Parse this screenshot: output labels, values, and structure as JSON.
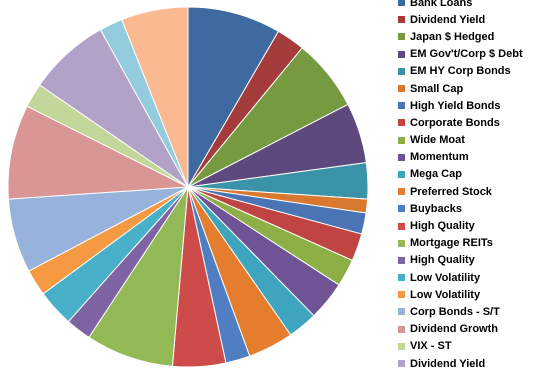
{
  "chart_data": {
    "type": "pie",
    "title": "",
    "legend_position": "right",
    "slices": [
      {
        "label": "Bank Loans",
        "value": 8.8,
        "color": "#3F6AA0"
      },
      {
        "label": "Dividend Yield",
        "value": 2.7,
        "color": "#A33C3A"
      },
      {
        "label": "Japan $ Hedged",
        "value": 6.8,
        "color": "#769A3F"
      },
      {
        "label": "EM Gov't/Corp $ Debt",
        "value": 5.7,
        "color": "#5E497E"
      },
      {
        "label": "EM HY Corp Bonds",
        "value": 3.4,
        "color": "#3A93A8"
      },
      {
        "label": "Small Cap",
        "value": 1.3,
        "color": "#D9782F"
      },
      {
        "label": "High Yield Bonds",
        "value": 2.0,
        "color": "#4A74B4"
      },
      {
        "label": "Corporate Bonds",
        "value": 2.6,
        "color": "#C04542"
      },
      {
        "label": "Wide Moat",
        "value": 2.6,
        "color": "#8CB046"
      },
      {
        "label": "Momentum",
        "value": 3.7,
        "color": "#705394"
      },
      {
        "label": "Mega Cap",
        "value": 2.8,
        "color": "#3FA4BE"
      },
      {
        "label": "Preferred Stock",
        "value": 4.3,
        "color": "#E47E2E"
      },
      {
        "label": "Buybacks",
        "value": 2.3,
        "color": "#4F7EC2"
      },
      {
        "label": "High Quality",
        "value": 5.0,
        "color": "#CD4C49"
      },
      {
        "label": "Mortgage REITs",
        "value": 8.3,
        "color": "#92B955"
      },
      {
        "label": "High Quality",
        "value": 2.4,
        "color": "#7F64A4"
      },
      {
        "label": "Low Volatility",
        "value": 3.5,
        "color": "#48B0C9"
      },
      {
        "label": "Low Volatility",
        "value": 2.5,
        "color": "#F59A43"
      },
      {
        "label": "Corp Bonds - S/T",
        "value": 7.0,
        "color": "#98B3DB"
      },
      {
        "label": "Dividend Growth",
        "value": 8.9,
        "color": "#D99694"
      },
      {
        "label": "VIX - ST",
        "value": 2.3,
        "color": "#C3D79B"
      },
      {
        "label": "Dividend Yield",
        "value": 7.7,
        "color": "#B2A2C7"
      },
      {
        "label": "",
        "value": 2.2,
        "color": "#93CDDD"
      },
      {
        "label": "",
        "value": 6.3,
        "color": "#FAB990"
      }
    ]
  }
}
